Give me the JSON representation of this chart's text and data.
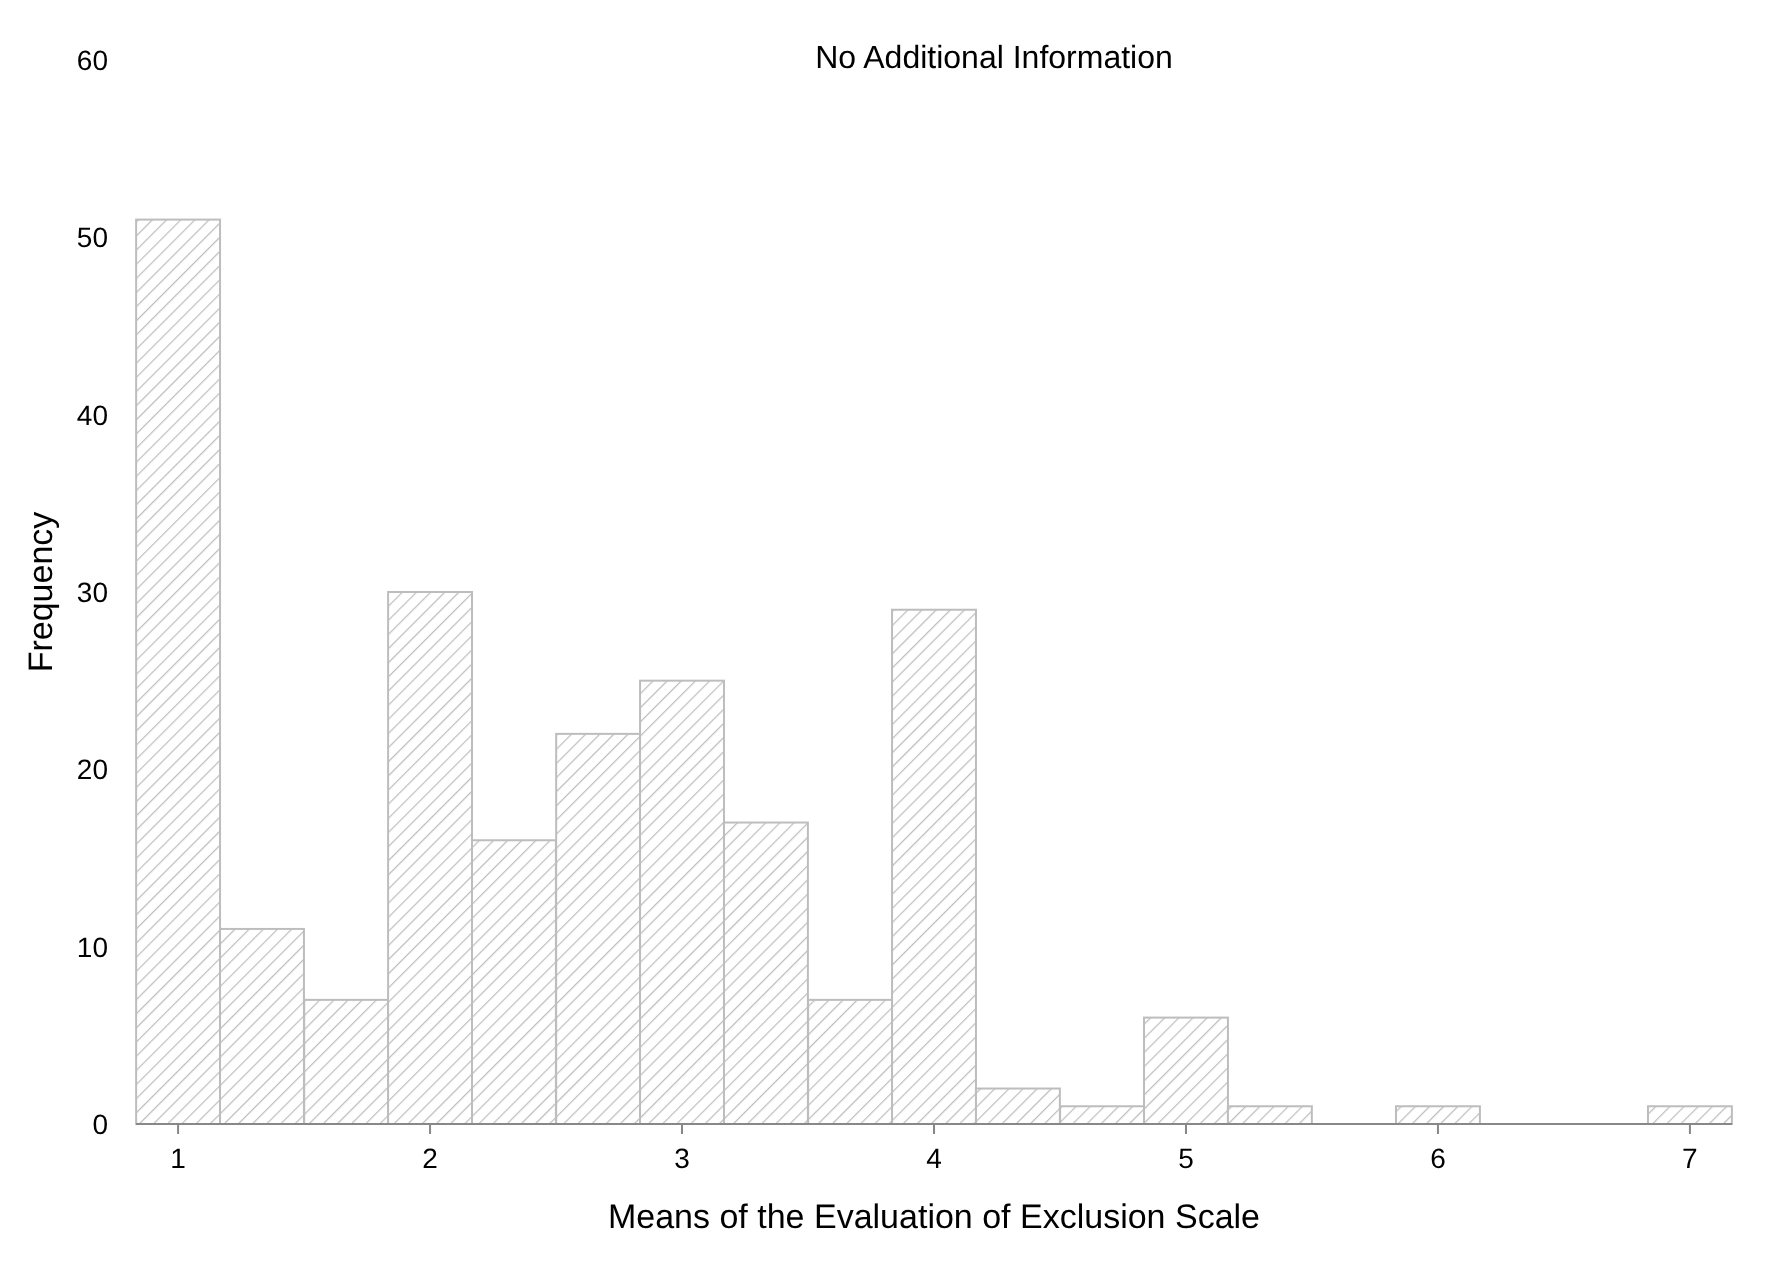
{
  "chart_data": {
    "type": "bar",
    "title": "No Additional Information",
    "xlabel": "Means of the Evaluation of Exclusion Scale",
    "ylabel": "Frequency",
    "x": [
      1,
      1.333,
      1.667,
      2,
      2.333,
      2.667,
      3,
      3.333,
      3.667,
      4,
      4.333,
      4.667,
      5,
      5.333,
      5.667,
      6,
      6.333,
      6.667,
      7
    ],
    "values": [
      51,
      11,
      7,
      30,
      16,
      22,
      25,
      17,
      7,
      29,
      2,
      1,
      6,
      1,
      0,
      1,
      0,
      0,
      1
    ],
    "color": "#bdbdbd",
    "xlim": [
      0.833,
      7.167
    ],
    "xticks": [
      1,
      2,
      3,
      4,
      5,
      6,
      7
    ],
    "ylim": [
      0,
      60
    ],
    "yticks": [
      0,
      10,
      20,
      30,
      40,
      50,
      60
    ],
    "grid": false
  }
}
